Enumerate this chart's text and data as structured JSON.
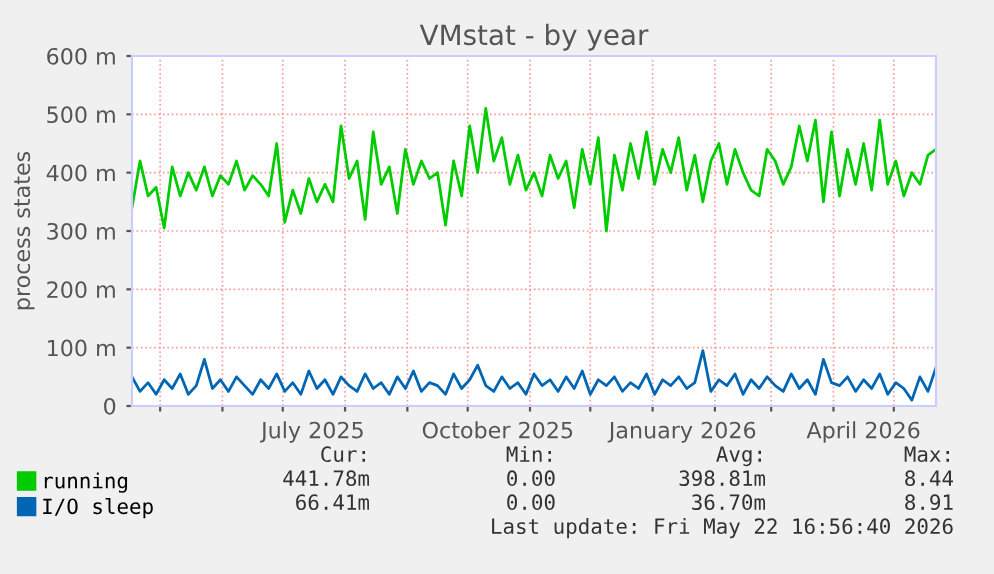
{
  "chart_data": {
    "type": "line",
    "title": "VMstat - by year",
    "ylabel": "process states",
    "x": [
      "2025-04-17",
      "2025-04-21",
      "2025-04-25",
      "2025-04-29",
      "2025-05-03",
      "2025-05-07",
      "2025-05-11",
      "2025-05-15",
      "2025-05-19",
      "2025-05-23",
      "2025-05-27",
      "2025-05-31",
      "2025-06-04",
      "2025-06-08",
      "2025-06-12",
      "2025-06-16",
      "2025-06-20",
      "2025-06-24",
      "2025-06-28",
      "2025-07-02",
      "2025-07-06",
      "2025-07-10",
      "2025-07-14",
      "2025-07-18",
      "2025-07-22",
      "2025-07-26",
      "2025-07-30",
      "2025-08-03",
      "2025-08-07",
      "2025-08-11",
      "2025-08-15",
      "2025-08-19",
      "2025-08-23",
      "2025-08-27",
      "2025-08-31",
      "2025-09-04",
      "2025-09-08",
      "2025-09-12",
      "2025-09-16",
      "2025-09-20",
      "2025-09-24",
      "2025-09-28",
      "2025-10-02",
      "2025-10-06",
      "2025-10-10",
      "2025-10-14",
      "2025-10-18",
      "2025-10-22",
      "2025-10-26",
      "2025-10-30",
      "2025-11-03",
      "2025-11-07",
      "2025-11-11",
      "2025-11-15",
      "2025-11-19",
      "2025-11-23",
      "2025-11-27",
      "2025-12-01",
      "2025-12-05",
      "2025-12-09",
      "2025-12-13",
      "2025-12-17",
      "2025-12-21",
      "2025-12-25",
      "2025-12-29",
      "2026-01-02",
      "2026-01-06",
      "2026-01-10",
      "2026-01-14",
      "2026-01-18",
      "2026-01-22",
      "2026-01-26",
      "2026-01-30",
      "2026-02-03",
      "2026-02-07",
      "2026-02-11",
      "2026-02-15",
      "2026-02-19",
      "2026-02-23",
      "2026-02-27",
      "2026-03-03",
      "2026-03-07",
      "2026-03-11",
      "2026-03-15",
      "2026-03-19",
      "2026-03-23",
      "2026-03-27",
      "2026-03-31",
      "2026-04-04",
      "2026-04-08",
      "2026-04-12",
      "2026-04-16",
      "2026-04-20",
      "2026-04-24",
      "2026-04-28",
      "2026-05-02",
      "2026-05-06",
      "2026-05-10",
      "2026-05-14",
      "2026-05-18",
      "2026-05-22"
    ],
    "series": [
      {
        "name": "running",
        "color": "#00cc00",
        "values": [
          340,
          420,
          360,
          375,
          305,
          410,
          360,
          400,
          370,
          410,
          360,
          395,
          380,
          420,
          370,
          395,
          380,
          360,
          450,
          315,
          370,
          330,
          390,
          350,
          380,
          350,
          480,
          390,
          420,
          320,
          470,
          380,
          410,
          330,
          440,
          380,
          420,
          390,
          400,
          310,
          420,
          360,
          480,
          400,
          510,
          420,
          460,
          380,
          430,
          370,
          400,
          360,
          430,
          390,
          420,
          340,
          440,
          380,
          460,
          300,
          430,
          370,
          450,
          390,
          470,
          380,
          440,
          400,
          460,
          370,
          430,
          350,
          420,
          450,
          380,
          440,
          400,
          370,
          360,
          440,
          420,
          380,
          410,
          480,
          420,
          490,
          350,
          470,
          360,
          440,
          380,
          450,
          370,
          490,
          380,
          420,
          360,
          400,
          380,
          430,
          440
        ]
      },
      {
        "name": "I/O sleep",
        "color": "#0066b3",
        "values": [
          50,
          25,
          40,
          20,
          45,
          30,
          55,
          20,
          35,
          80,
          30,
          45,
          25,
          50,
          35,
          20,
          45,
          30,
          55,
          25,
          40,
          20,
          60,
          30,
          45,
          20,
          50,
          35,
          25,
          55,
          30,
          40,
          20,
          50,
          30,
          60,
          25,
          40,
          35,
          20,
          55,
          30,
          45,
          70,
          35,
          25,
          50,
          30,
          40,
          20,
          55,
          35,
          45,
          25,
          50,
          30,
          60,
          20,
          45,
          35,
          50,
          25,
          40,
          30,
          55,
          20,
          45,
          35,
          50,
          30,
          40,
          95,
          25,
          45,
          35,
          55,
          20,
          45,
          30,
          50,
          35,
          25,
          55,
          30,
          45,
          20,
          80,
          40,
          35,
          50,
          25,
          45,
          30,
          55,
          20,
          40,
          30,
          10,
          50,
          25,
          66
        ]
      }
    ],
    "xlim": [
      "2025-04-17",
      "2026-05-22"
    ],
    "xticks": [
      {
        "value": "2025-05-01",
        "label": null
      },
      {
        "value": "2025-06-01",
        "label": null
      },
      {
        "value": "2025-07-01",
        "label": null
      },
      {
        "value": "2025-08-01",
        "label": null
      },
      {
        "value": "2025-09-01",
        "label": null
      },
      {
        "value": "2025-10-01",
        "label": null
      },
      {
        "value": "2025-11-01",
        "label": null
      },
      {
        "value": "2025-12-01",
        "label": null
      },
      {
        "value": "2026-01-01",
        "label": null
      },
      {
        "value": "2026-02-01",
        "label": null
      },
      {
        "value": "2026-03-01",
        "label": null
      },
      {
        "value": "2026-04-01",
        "label": null
      },
      {
        "value": "2026-05-01",
        "label": null
      },
      {
        "value": "2025-07-16",
        "label": "July 2025"
      },
      {
        "value": "2025-10-16",
        "label": "October 2025"
      },
      {
        "value": "2026-01-16",
        "label": "January 2026"
      },
      {
        "value": "2026-04-16",
        "label": "April 2026"
      }
    ],
    "ylim": [
      0,
      600
    ],
    "yticks": [
      0,
      {
        "value": 100,
        "label": "100 m"
      },
      {
        "value": 200,
        "label": "200 m"
      },
      {
        "value": 300,
        "label": "300 m"
      },
      {
        "value": 400,
        "label": "400 m"
      },
      {
        "value": 500,
        "label": "500 m"
      },
      {
        "value": 600,
        "label": "600 m"
      }
    ],
    "grid": true,
    "legend": "bottom",
    "marker": "none",
    "line_style": "solid",
    "annotations": [
      "Cur:",
      "Min:",
      "Avg:",
      "Max:",
      "441.78m",
      "0.00",
      "398.81m",
      "8.44",
      "66.41m",
      "0.00",
      "36.70m",
      "8.91",
      "Last update: Fri May 22 16:56:40 2026"
    ]
  }
}
